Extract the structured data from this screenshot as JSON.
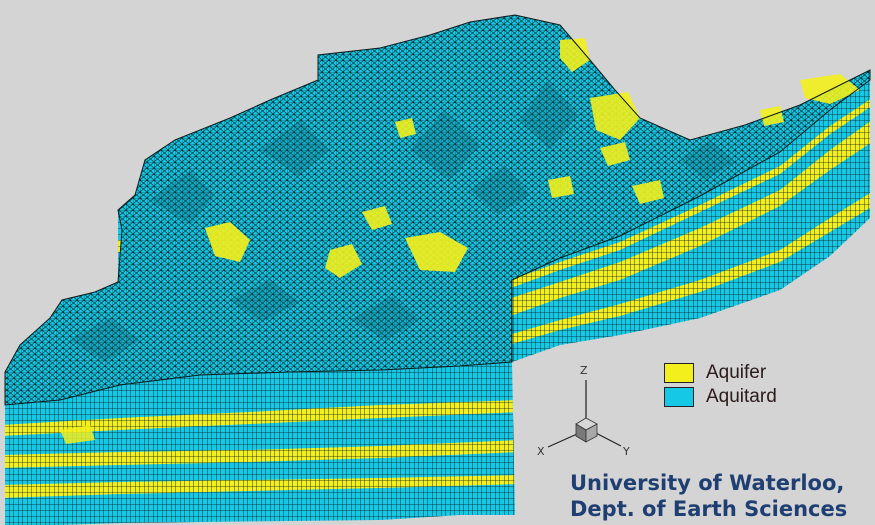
{
  "legend": {
    "items": [
      {
        "label": "Aquifer",
        "color": "#f2ef1c"
      },
      {
        "label": "Aquitard",
        "color": "#14c8e6"
      }
    ]
  },
  "axes": {
    "z": "Z",
    "x": "X",
    "y": "Y"
  },
  "credit": {
    "line1": "University of Waterloo,",
    "line2": "Dept. of Earth Sciences"
  },
  "colors": {
    "background": "#d4d4d4",
    "aquifer": "#f2ef1c",
    "aquitard": "#14c8e6",
    "mesh": "#0b1a1a",
    "credit": "#1f3f72"
  }
}
